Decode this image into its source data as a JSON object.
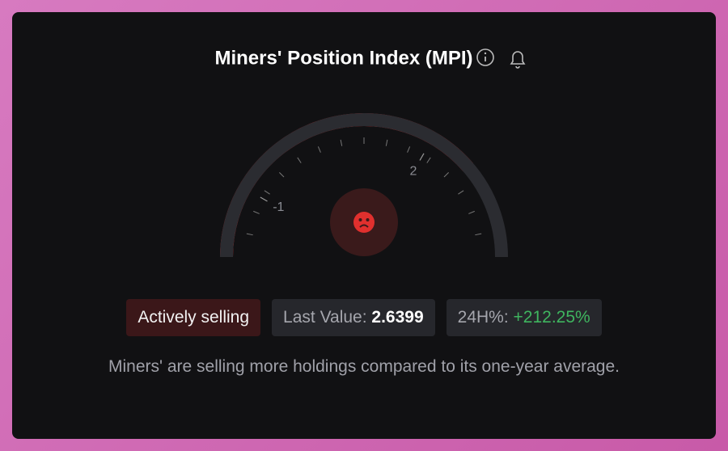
{
  "chart_data": {
    "type": "gauge",
    "title": "Miners' Position Index (MPI)",
    "value": 2.6399,
    "ylim": [
      -2,
      4
    ],
    "yticks": [
      -1,
      2
    ],
    "fill_color": "#d9302f",
    "track_color": "#2b2c31",
    "status": "Actively selling",
    "value_caption": "Last Value:",
    "change_caption": "24H%:",
    "change": {
      "value": 212.25,
      "label": "+212.25%"
    },
    "description": "Miners' are selling more holdings compared to its one-year average."
  }
}
